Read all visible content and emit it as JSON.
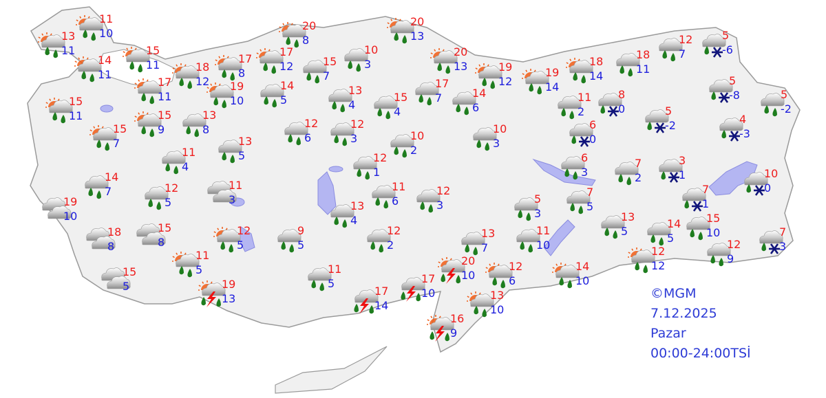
{
  "colors": {
    "land": "#f0f0f0",
    "border": "#9a9a9a",
    "water": "#b4b6f2",
    "high": "#ee1c1c",
    "low": "#1c1cdc",
    "legend": "#2d3bd6",
    "rain": "#1e7d1e",
    "snow": "#10147a",
    "lightning": "#ee1111",
    "sun": "#f05a14"
  },
  "legend": {
    "copyright": "©MGM",
    "date": "7.12.2025",
    "day": "Pazar",
    "period": "00:00-24:00TSİ"
  },
  "stations": [
    {
      "high": "13",
      "low": "11",
      "icon": "sun-rain"
    },
    {
      "high": "11",
      "low": "10",
      "icon": "sun-rain"
    },
    {
      "high": "14",
      "low": "11",
      "icon": "sun-rain"
    },
    {
      "high": "15",
      "low": "11",
      "icon": "sun-rain"
    },
    {
      "high": "17",
      "low": "11",
      "icon": "sun-rain"
    },
    {
      "high": "18",
      "low": "12",
      "icon": "sun-rain"
    },
    {
      "high": "17",
      "low": "8",
      "icon": "sun-rain"
    },
    {
      "high": "17",
      "low": "12",
      "icon": "sun-rain"
    },
    {
      "high": "15",
      "low": "7",
      "icon": "rain"
    },
    {
      "high": "10",
      "low": "3",
      "icon": "rain"
    },
    {
      "high": "20",
      "low": "8",
      "icon": "sun-rain"
    },
    {
      "high": "20",
      "low": "13",
      "icon": "sun-rain"
    },
    {
      "high": "20",
      "low": "13",
      "icon": "sun-rain"
    },
    {
      "high": "19",
      "low": "12",
      "icon": "sun-rain"
    },
    {
      "high": "19",
      "low": "14",
      "icon": "sun-rain"
    },
    {
      "high": "18",
      "low": "14",
      "icon": "sun-rain"
    },
    {
      "high": "18",
      "low": "11",
      "icon": "rain"
    },
    {
      "high": "12",
      "low": "7",
      "icon": "rain"
    },
    {
      "high": "5",
      "low": "-6",
      "icon": "sleet"
    },
    {
      "high": "5",
      "low": "-8",
      "icon": "sleet"
    },
    {
      "high": "5",
      "low": "-2",
      "icon": "rain"
    },
    {
      "high": "15",
      "low": "11",
      "icon": "sun-rain"
    },
    {
      "high": "15",
      "low": "7",
      "icon": "sun-rain"
    },
    {
      "high": "15",
      "low": "9",
      "icon": "sun-rain"
    },
    {
      "high": "19",
      "low": "10",
      "icon": "sun-rain"
    },
    {
      "high": "14",
      "low": "5",
      "icon": "rain"
    },
    {
      "high": "13",
      "low": "4",
      "icon": "rain"
    },
    {
      "high": "15",
      "low": "4",
      "icon": "rain"
    },
    {
      "high": "17",
      "low": "7",
      "icon": "rain"
    },
    {
      "high": "14",
      "low": "6",
      "icon": "rain"
    },
    {
      "high": "11",
      "low": "2",
      "icon": "rain"
    },
    {
      "high": "8",
      "low": "0",
      "icon": "sleet"
    },
    {
      "high": "6",
      "low": "0",
      "icon": "sleet"
    },
    {
      "high": "5",
      "low": "-2",
      "icon": "sleet"
    },
    {
      "high": "4",
      "low": "-3",
      "icon": "sleet"
    },
    {
      "high": "13",
      "low": "8",
      "icon": "rain"
    },
    {
      "high": "12",
      "low": "6",
      "icon": "rain"
    },
    {
      "high": "12",
      "low": "3",
      "icon": "rain"
    },
    {
      "high": "10",
      "low": "2",
      "icon": "rain"
    },
    {
      "high": "10",
      "low": "3",
      "icon": "rain"
    },
    {
      "high": "13",
      "low": "5",
      "icon": "rain"
    },
    {
      "high": "11",
      "low": "4",
      "icon": "rain"
    },
    {
      "high": "12",
      "low": "1",
      "icon": "rain"
    },
    {
      "high": "6",
      "low": "3",
      "icon": "rain"
    },
    {
      "high": "7",
      "low": "2",
      "icon": "rain"
    },
    {
      "high": "3",
      "low": "1",
      "icon": "sleet"
    },
    {
      "high": "10",
      "low": "0",
      "icon": "sleet"
    },
    {
      "high": "14",
      "low": "7",
      "icon": "rain"
    },
    {
      "high": "12",
      "low": "5",
      "icon": "rain"
    },
    {
      "high": "11",
      "low": "3",
      "icon": "cloudy"
    },
    {
      "high": "19",
      "low": "10",
      "icon": "cloudy"
    },
    {
      "high": "11",
      "low": "6",
      "icon": "rain"
    },
    {
      "high": "12",
      "low": "3",
      "icon": "rain"
    },
    {
      "high": "13",
      "low": "4",
      "icon": "rain"
    },
    {
      "high": "5",
      "low": "3",
      "icon": "rain"
    },
    {
      "high": "7",
      "low": "5",
      "icon": "rain"
    },
    {
      "high": "7",
      "low": "1",
      "icon": "sleet"
    },
    {
      "high": "18",
      "low": "8",
      "icon": "cloudy"
    },
    {
      "high": "15",
      "low": "8",
      "icon": "cloudy"
    },
    {
      "high": "12",
      "low": "5",
      "icon": "sun-rain"
    },
    {
      "high": "9",
      "low": "5",
      "icon": "rain"
    },
    {
      "high": "12",
      "low": "2",
      "icon": "rain"
    },
    {
      "high": "13",
      "low": "7",
      "icon": "rain"
    },
    {
      "high": "11",
      "low": "10",
      "icon": "rain"
    },
    {
      "high": "13",
      "low": "5",
      "icon": "rain"
    },
    {
      "high": "14",
      "low": "5",
      "icon": "rain"
    },
    {
      "high": "15",
      "low": "10",
      "icon": "rain"
    },
    {
      "high": "7",
      "low": "3",
      "icon": "sleet"
    },
    {
      "high": "11",
      "low": "5",
      "icon": "sun-rain"
    },
    {
      "high": "15",
      "low": "5",
      "icon": "cloudy"
    },
    {
      "high": "12",
      "low": "12",
      "icon": "sun-rain"
    },
    {
      "high": "12",
      "low": "9",
      "icon": "rain"
    },
    {
      "high": "19",
      "low": "13",
      "icon": "sun-thunder"
    },
    {
      "high": "11",
      "low": "5",
      "icon": "rain"
    },
    {
      "high": "17",
      "low": "14",
      "icon": "thunder"
    },
    {
      "high": "17",
      "low": "10",
      "icon": "thunder"
    },
    {
      "high": "20",
      "low": "10",
      "icon": "sun-thunder"
    },
    {
      "high": "12",
      "low": "6",
      "icon": "sun-rain"
    },
    {
      "high": "14",
      "low": "10",
      "icon": "sun-rain"
    },
    {
      "high": "13",
      "low": "10",
      "icon": "sun-rain"
    },
    {
      "high": "16",
      "low": "9",
      "icon": "sun-thunder"
    }
  ]
}
